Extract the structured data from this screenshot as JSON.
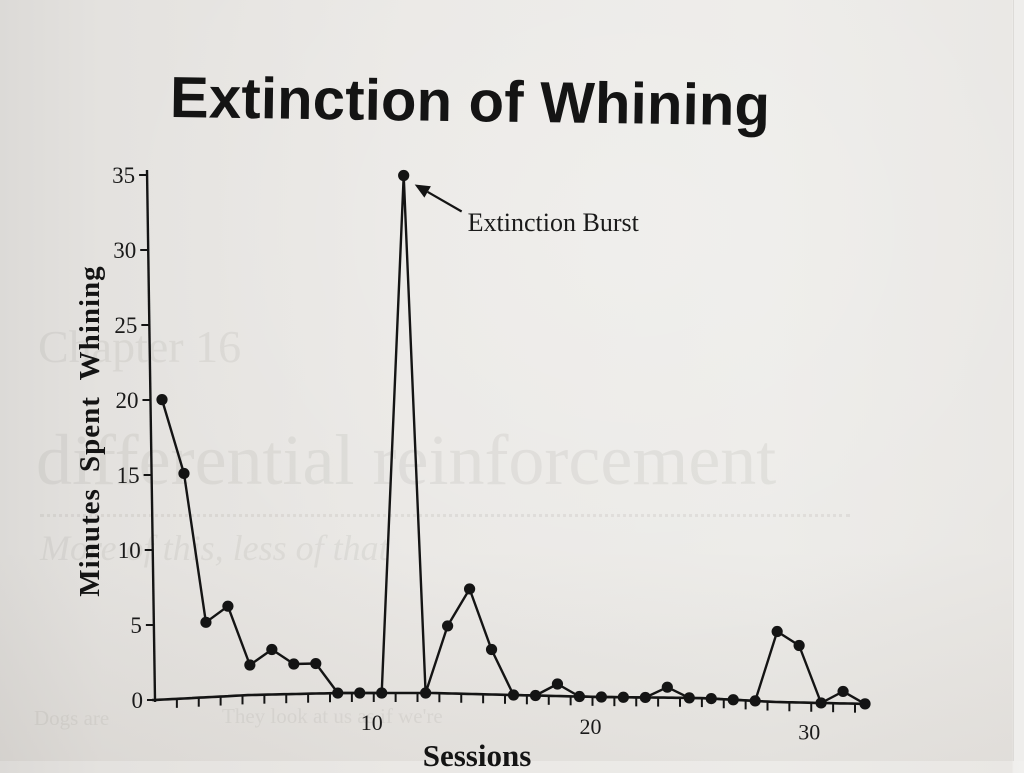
{
  "chart_data": {
    "type": "line",
    "title": "Extinction of Whining",
    "xlabel": "Sessions",
    "ylabel": "Minutes Spent Whining",
    "x": [
      1,
      2,
      3,
      4,
      5,
      6,
      7,
      8,
      9,
      10,
      11,
      12,
      13,
      14,
      15,
      16,
      17,
      18,
      19,
      20,
      21,
      22,
      23,
      24,
      25,
      26,
      27,
      28,
      29,
      30,
      31,
      32,
      33
    ],
    "series": [
      {
        "name": "Minutes Spent Whining",
        "values": [
          20,
          15,
          5,
          6,
          2,
          3,
          2,
          2,
          0,
          0,
          0,
          34.5,
          0,
          4.5,
          7,
          3,
          0,
          0,
          0.8,
          0,
          0,
          0,
          0,
          0.7,
          0,
          0,
          0,
          0,
          4.7,
          3.8,
          0,
          0.8,
          0
        ],
        "marker": "filled-circle",
        "color": "#141414"
      }
    ],
    "ylim": [
      0,
      35
    ],
    "yticks": [
      0,
      5,
      10,
      15,
      20,
      25,
      30,
      35
    ],
    "xlim": [
      0,
      33
    ],
    "xtick_labels": [
      10,
      20,
      30
    ],
    "minor_xticks_every": 1,
    "grid": false,
    "legend": null,
    "annotations": [
      {
        "text": "Extinction Burst",
        "x": 12,
        "y": 34.5,
        "arrow": true
      }
    ]
  },
  "page_background_text": {
    "chapter": "Chapter 16",
    "heading": "differential reinforcement",
    "subtitle": "More of this, less of that",
    "body_fragment_1": "Dogs are",
    "body_fragment_2": "They look at us as if we're"
  },
  "colors": {
    "ink": "#141414",
    "paper": "#e8e6e3"
  }
}
